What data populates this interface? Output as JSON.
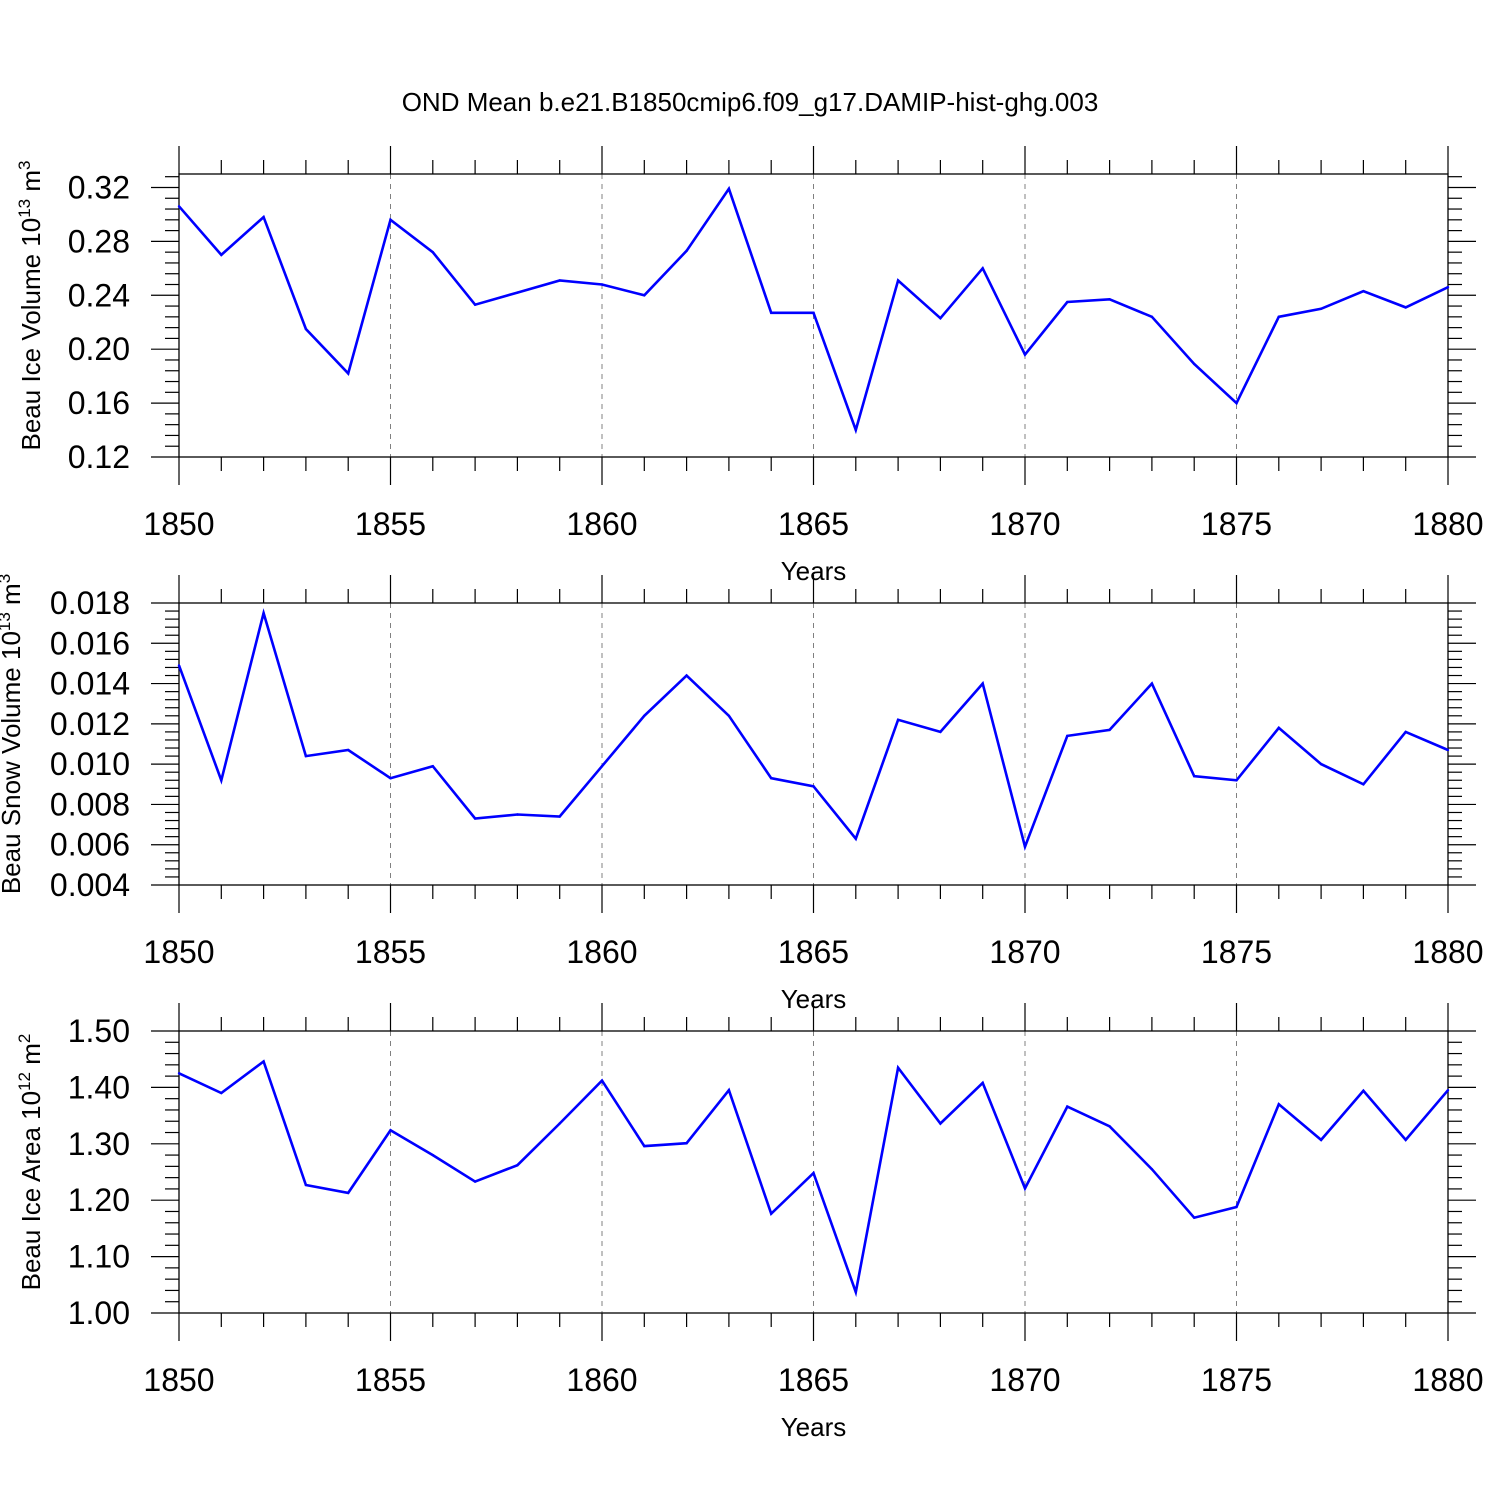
{
  "chart_data": [
    {
      "type": "line",
      "title": "OND Mean b.e21.B1850cmip6.f09_g17.DAMIP-hist-ghg.003",
      "xlabel": "Years",
      "ylabel": "Beau Ice Volume 10",
      "ylabel_exp": "13",
      "ylabel_unit": "m",
      "ylabel_unit_exp": "3",
      "xlim": [
        1850,
        1880
      ],
      "ylim": [
        0.12,
        0.33
      ],
      "x_ticks": [
        "1850",
        "1855",
        "1860",
        "1865",
        "1870",
        "1875",
        "1880"
      ],
      "y_ticks": [
        "0.12",
        "0.16",
        "0.20",
        "0.24",
        "0.28",
        "0.32"
      ],
      "grid": "vertical dashed at labeled years",
      "color": "#0000ff",
      "x": [
        1850,
        1851,
        1852,
        1853,
        1854,
        1855,
        1856,
        1857,
        1858,
        1859,
        1860,
        1861,
        1862,
        1863,
        1864,
        1865,
        1866,
        1867,
        1868,
        1869,
        1870,
        1871,
        1872,
        1873,
        1874,
        1875,
        1876,
        1877,
        1878,
        1879,
        1880
      ],
      "values": [
        0.306,
        0.27,
        0.298,
        0.215,
        0.182,
        0.296,
        0.272,
        0.233,
        0.242,
        0.251,
        0.248,
        0.24,
        0.273,
        0.319,
        0.227,
        0.227,
        0.14,
        0.251,
        0.223,
        0.26,
        0.196,
        0.235,
        0.237,
        0.224,
        0.189,
        0.16,
        0.224,
        0.23,
        0.243,
        0.231,
        0.246
      ]
    },
    {
      "type": "line",
      "xlabel": "Years",
      "ylabel": "Beau Snow Volume 10",
      "ylabel_exp": "13",
      "ylabel_unit": "m",
      "ylabel_unit_exp": "3",
      "xlim": [
        1850,
        1880
      ],
      "ylim": [
        0.004,
        0.018
      ],
      "x_ticks": [
        "1850",
        "1855",
        "1860",
        "1865",
        "1870",
        "1875",
        "1880"
      ],
      "y_ticks": [
        "0.004",
        "0.006",
        "0.008",
        "0.010",
        "0.012",
        "0.014",
        "0.016",
        "0.018"
      ],
      "grid": "vertical dashed at labeled years",
      "color": "#0000ff",
      "x": [
        1850,
        1851,
        1852,
        1853,
        1854,
        1855,
        1856,
        1857,
        1858,
        1859,
        1860,
        1861,
        1862,
        1863,
        1864,
        1865,
        1866,
        1867,
        1868,
        1869,
        1870,
        1871,
        1872,
        1873,
        1874,
        1875,
        1876,
        1877,
        1878,
        1879,
        1880
      ],
      "values": [
        0.0149,
        0.0092,
        0.0175,
        0.0104,
        0.0107,
        0.0093,
        0.0099,
        0.0073,
        0.0075,
        0.0074,
        0.0099,
        0.0124,
        0.0144,
        0.0124,
        0.0093,
        0.0089,
        0.0063,
        0.0122,
        0.0116,
        0.014,
        0.0059,
        0.0114,
        0.0117,
        0.014,
        0.0094,
        0.0092,
        0.0118,
        0.01,
        0.009,
        0.0116,
        0.0107
      ]
    },
    {
      "type": "line",
      "xlabel": "Years",
      "ylabel": "Beau Ice Area 10",
      "ylabel_exp": "12",
      "ylabel_unit": "m",
      "ylabel_unit_exp": "2",
      "xlim": [
        1850,
        1880
      ],
      "ylim": [
        1.0,
        1.5
      ],
      "x_ticks": [
        "1850",
        "1855",
        "1860",
        "1865",
        "1870",
        "1875",
        "1880"
      ],
      "y_ticks": [
        "1.00",
        "1.10",
        "1.20",
        "1.30",
        "1.40",
        "1.50"
      ],
      "grid": "vertical dashed at labeled years",
      "color": "#0000ff",
      "x": [
        1850,
        1851,
        1852,
        1853,
        1854,
        1855,
        1856,
        1857,
        1858,
        1859,
        1860,
        1861,
        1862,
        1863,
        1864,
        1865,
        1866,
        1867,
        1868,
        1869,
        1870,
        1871,
        1872,
        1873,
        1874,
        1875,
        1876,
        1877,
        1878,
        1879,
        1880
      ],
      "values": [
        1.425,
        1.39,
        1.446,
        1.227,
        1.213,
        1.324,
        1.28,
        1.233,
        1.262,
        1.336,
        1.412,
        1.296,
        1.301,
        1.395,
        1.176,
        1.248,
        1.037,
        1.435,
        1.336,
        1.408,
        1.221,
        1.366,
        1.331,
        1.255,
        1.169,
        1.188,
        1.37,
        1.307,
        1.394,
        1.307,
        1.395
      ]
    }
  ]
}
